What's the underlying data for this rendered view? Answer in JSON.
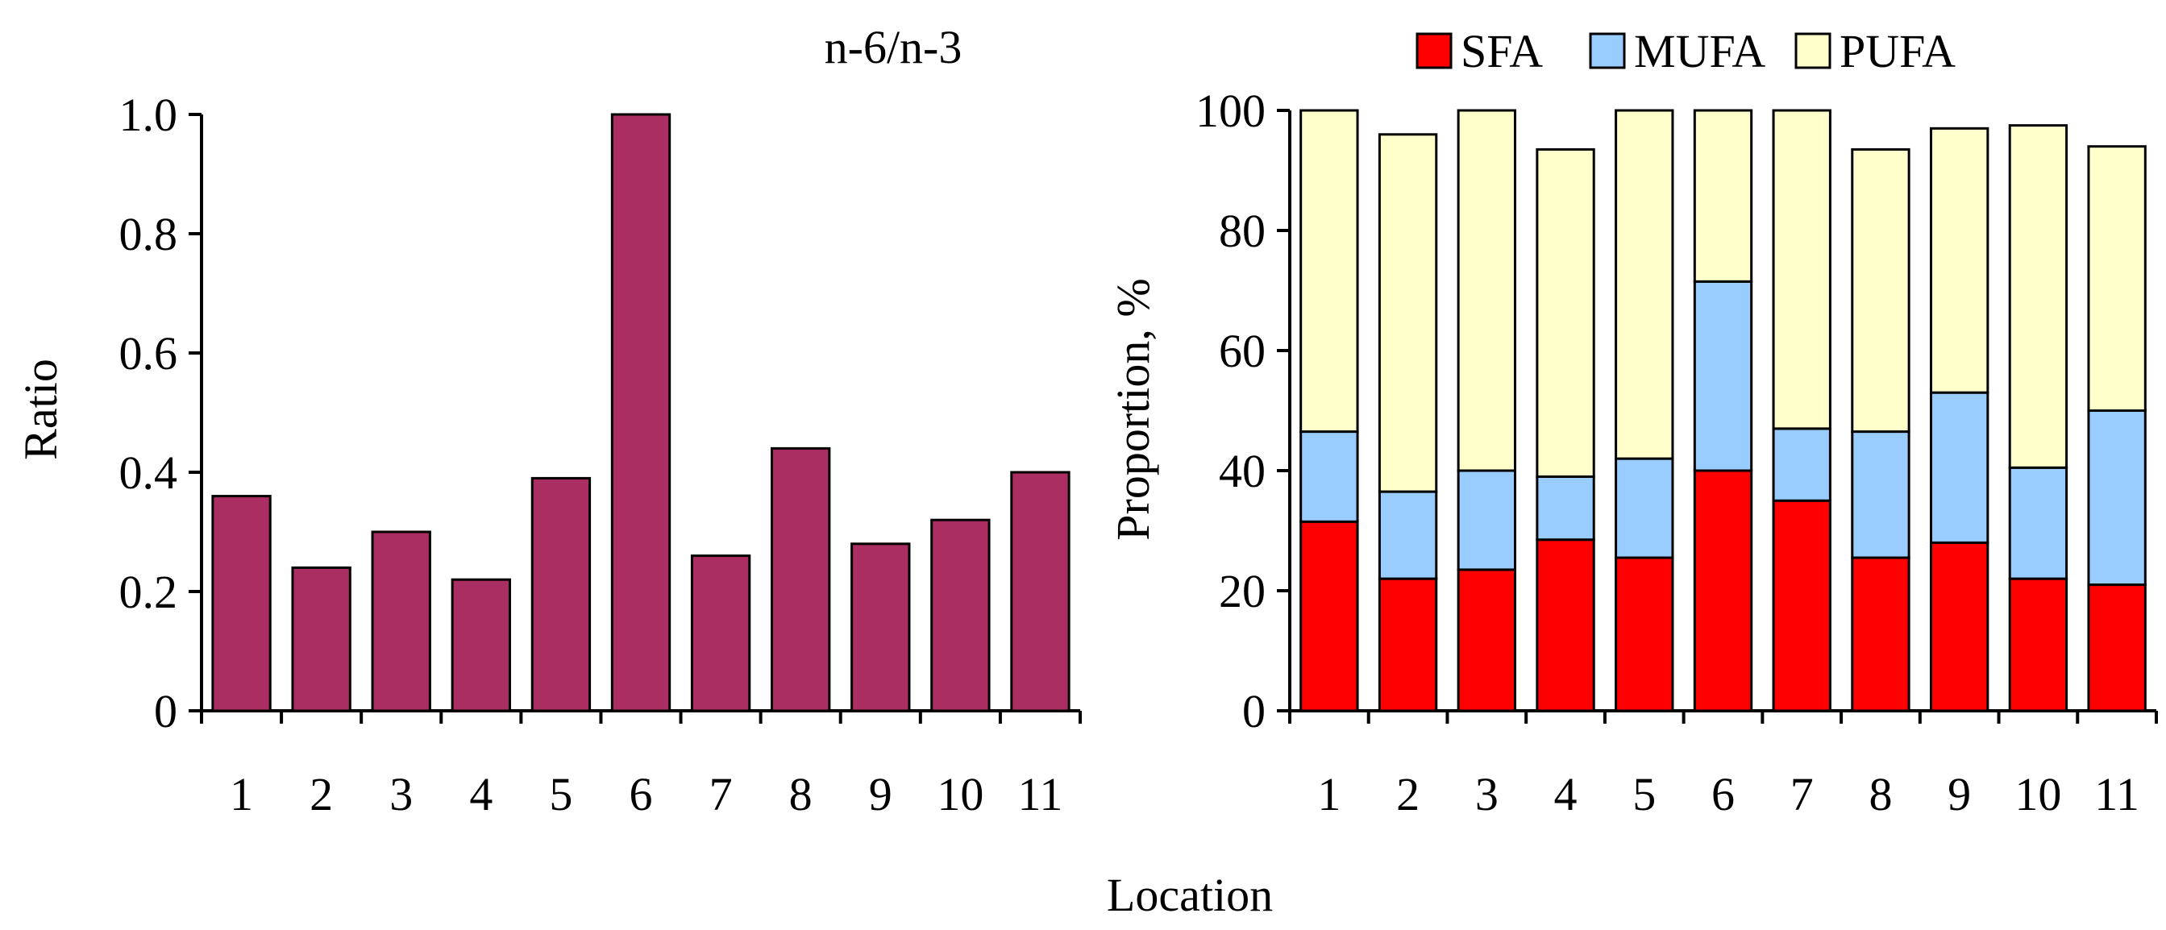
{
  "chart_data": [
    {
      "type": "bar",
      "title": "n-6/n-3",
      "xlabel": "",
      "ylabel": "Ratio",
      "ylim": [
        0,
        1.0
      ],
      "yticks": [
        "0",
        "0.2",
        "0.4",
        "0.6",
        "0.8",
        "1.0"
      ],
      "categories": [
        "1",
        "2",
        "3",
        "4",
        "5",
        "6",
        "7",
        "8",
        "9",
        "10",
        "11"
      ],
      "values": [
        0.36,
        0.24,
        0.3,
        0.22,
        0.39,
        1.0,
        0.26,
        0.44,
        0.28,
        0.32,
        0.4
      ],
      "color": "#ab2e62"
    },
    {
      "type": "bar",
      "stacked": true,
      "title": "",
      "xlabel": "",
      "ylabel": "Proportion, %",
      "ylim": [
        0,
        100
      ],
      "yticks": [
        "0",
        "20",
        "40",
        "60",
        "80",
        "100"
      ],
      "categories": [
        "1",
        "2",
        "3",
        "4",
        "5",
        "6",
        "7",
        "8",
        "9",
        "10",
        "11"
      ],
      "legend_position": "top",
      "series": [
        {
          "name": "SFA",
          "color": "#ff0000",
          "values": [
            31.5,
            22,
            23.5,
            28.5,
            25.5,
            40,
            35,
            25.5,
            28,
            22,
            21
          ]
        },
        {
          "name": "MUFA",
          "color": "#99ccff",
          "values": [
            15,
            14.5,
            16.5,
            10.5,
            16.5,
            31.5,
            12,
            21,
            25,
            18.5,
            29
          ]
        },
        {
          "name": "PUFA",
          "color": "#ffffcc",
          "values": [
            53.5,
            59.5,
            60,
            54.5,
            58,
            28.5,
            53,
            47,
            44,
            57,
            44
          ]
        }
      ]
    }
  ],
  "shared_xlabel": "Location"
}
